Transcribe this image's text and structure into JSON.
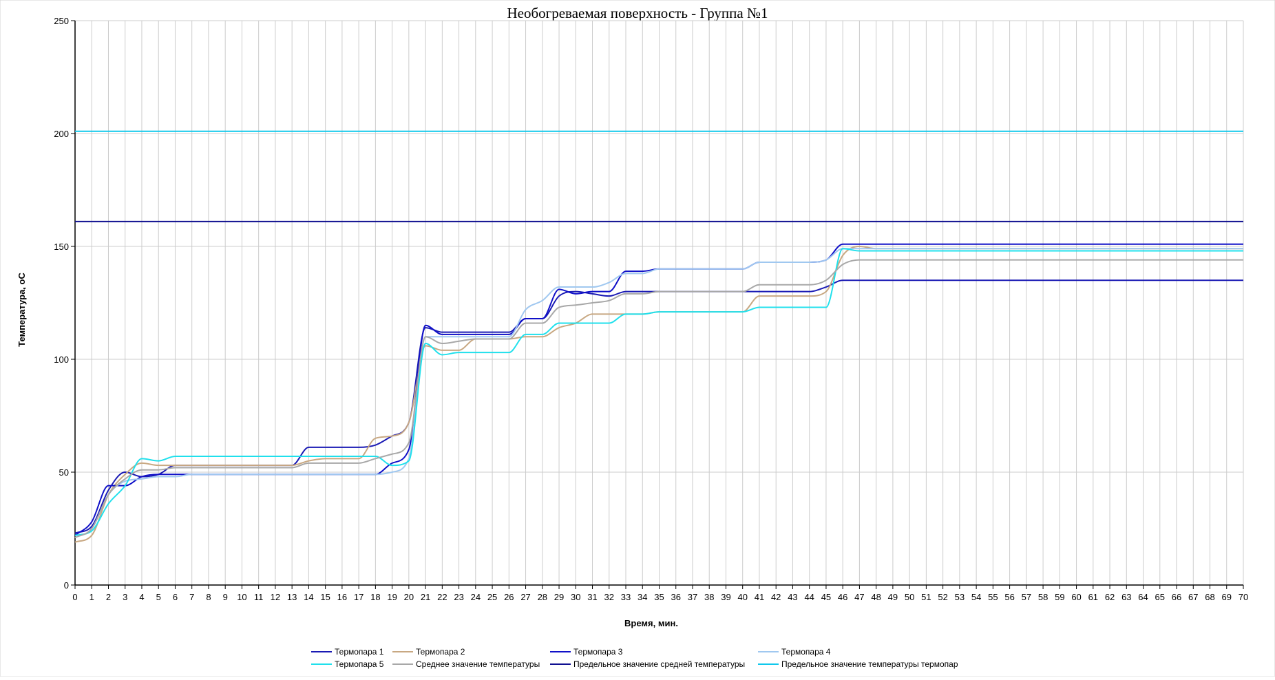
{
  "chart_data": {
    "type": "line",
    "title": "Необогреваемая поверхность - Группа №1",
    "xlabel": "Время, мин.",
    "ylabel": "Температура, оС",
    "xlim": [
      0,
      70
    ],
    "ylim": [
      0,
      250
    ],
    "x_ticks": [
      0,
      1,
      2,
      3,
      4,
      5,
      6,
      7,
      8,
      9,
      10,
      11,
      12,
      13,
      14,
      15,
      16,
      17,
      18,
      19,
      20,
      21,
      22,
      23,
      24,
      25,
      26,
      27,
      28,
      29,
      30,
      31,
      32,
      33,
      34,
      35,
      36,
      37,
      38,
      39,
      40,
      41,
      42,
      43,
      44,
      45,
      46,
      47,
      48,
      49,
      50,
      51,
      52,
      53,
      54,
      55,
      56,
      57,
      58,
      59,
      60,
      61,
      62,
      63,
      64,
      65,
      66,
      67,
      68,
      69,
      70
    ],
    "y_ticks": [
      0,
      50,
      100,
      150,
      200,
      250
    ],
    "grid": true,
    "smooth": true,
    "legend_position": "bottom",
    "series": [
      {
        "name": "Термопара 1",
        "color": "#1a1ab4",
        "x": [
          0,
          1,
          2,
          3,
          4,
          5,
          6,
          7,
          8,
          9,
          10,
          11,
          12,
          13,
          14,
          15,
          16,
          17,
          18,
          19,
          20,
          21,
          22,
          23,
          24,
          25,
          26,
          27,
          28,
          29,
          30,
          31,
          32,
          33,
          34,
          35,
          36,
          37,
          38,
          39,
          40,
          41,
          42,
          43,
          44,
          45,
          46,
          47,
          48,
          49,
          50,
          70
        ],
        "y": [
          23,
          26,
          42,
          50,
          48,
          49,
          53,
          53,
          53,
          53,
          53,
          53,
          53,
          53,
          61,
          61,
          61,
          61,
          62,
          66,
          72,
          114,
          112,
          112,
          112,
          112,
          112,
          118,
          118,
          128,
          130,
          129,
          128,
          130,
          130,
          130,
          130,
          130,
          130,
          130,
          130,
          130,
          130,
          130,
          130,
          132,
          135,
          135,
          135,
          135,
          135,
          135
        ]
      },
      {
        "name": "Термопара 2",
        "color": "#c8a882",
        "x": [
          0,
          1,
          2,
          3,
          4,
          5,
          6,
          7,
          8,
          9,
          10,
          11,
          12,
          13,
          14,
          15,
          16,
          17,
          18,
          19,
          20,
          21,
          22,
          23,
          24,
          25,
          26,
          27,
          28,
          29,
          30,
          31,
          32,
          33,
          34,
          35,
          36,
          37,
          38,
          39,
          40,
          41,
          42,
          43,
          44,
          45,
          46,
          47,
          48,
          49,
          50,
          70
        ],
        "y": [
          19,
          22,
          40,
          49,
          54,
          53,
          53,
          53,
          53,
          53,
          53,
          53,
          53,
          53,
          55,
          56,
          56,
          56,
          65,
          66,
          72,
          106,
          104,
          104,
          109,
          109,
          109,
          110,
          110,
          114,
          116,
          120,
          120,
          120,
          120,
          121,
          121,
          121,
          121,
          121,
          121,
          128,
          128,
          128,
          128,
          130,
          146,
          150,
          149,
          149,
          149,
          149
        ]
      },
      {
        "name": "Термопара 3",
        "color": "#1010c8",
        "x": [
          0,
          1,
          2,
          3,
          4,
          5,
          6,
          7,
          8,
          9,
          10,
          11,
          12,
          13,
          14,
          15,
          16,
          17,
          18,
          19,
          20,
          21,
          22,
          23,
          24,
          25,
          26,
          27,
          28,
          29,
          30,
          31,
          32,
          33,
          34,
          35,
          36,
          37,
          38,
          39,
          40,
          41,
          42,
          43,
          44,
          45,
          46,
          47,
          48,
          49,
          50,
          70
        ],
        "y": [
          22,
          28,
          44,
          44,
          48,
          49,
          49,
          49,
          49,
          49,
          49,
          49,
          49,
          49,
          49,
          49,
          49,
          49,
          49,
          54,
          60,
          115,
          111,
          111,
          111,
          111,
          111,
          118,
          118,
          131,
          129,
          130,
          130,
          139,
          139,
          140,
          140,
          140,
          140,
          140,
          140,
          143,
          143,
          143,
          143,
          144,
          151,
          151,
          151,
          151,
          151,
          151
        ]
      },
      {
        "name": "Термопара 4",
        "color": "#a0c8f0",
        "x": [
          0,
          1,
          2,
          3,
          4,
          5,
          6,
          7,
          8,
          9,
          10,
          11,
          12,
          13,
          14,
          15,
          16,
          17,
          18,
          19,
          20,
          21,
          22,
          23,
          24,
          25,
          26,
          27,
          28,
          29,
          30,
          31,
          32,
          33,
          34,
          35,
          36,
          37,
          38,
          39,
          40,
          41,
          42,
          43,
          44,
          45,
          46,
          47,
          48,
          49,
          50,
          70
        ],
        "y": [
          21,
          25,
          40,
          46,
          47,
          48,
          48,
          49,
          49,
          49,
          49,
          49,
          49,
          49,
          49,
          49,
          49,
          49,
          49,
          50,
          56,
          110,
          110,
          110,
          110,
          110,
          110,
          122,
          126,
          132,
          132,
          132,
          134,
          138,
          138,
          140,
          140,
          140,
          140,
          140,
          140,
          143,
          143,
          143,
          143,
          144,
          149,
          149,
          149,
          149,
          149,
          149
        ]
      },
      {
        "name": "Термопара 5",
        "color": "#20e0ec",
        "x": [
          0,
          1,
          2,
          3,
          4,
          5,
          6,
          7,
          8,
          9,
          10,
          11,
          12,
          13,
          14,
          15,
          16,
          17,
          18,
          19,
          20,
          21,
          22,
          23,
          24,
          25,
          26,
          27,
          28,
          29,
          30,
          31,
          32,
          33,
          34,
          35,
          36,
          37,
          38,
          39,
          40,
          41,
          42,
          43,
          44,
          45,
          46,
          47,
          48,
          49,
          50,
          70
        ],
        "y": [
          22,
          24,
          36,
          44,
          56,
          55,
          57,
          57,
          57,
          57,
          57,
          57,
          57,
          57,
          57,
          57,
          57,
          57,
          57,
          53,
          55,
          107,
          102,
          103,
          103,
          103,
          103,
          111,
          111,
          116,
          116,
          116,
          116,
          120,
          120,
          121,
          121,
          121,
          121,
          121,
          121,
          123,
          123,
          123,
          123,
          123,
          149,
          148,
          148,
          148,
          148,
          148
        ]
      },
      {
        "name": "Среднее значение температуры",
        "color": "#a8a8a8",
        "x": [
          0,
          1,
          2,
          3,
          4,
          5,
          6,
          7,
          8,
          9,
          10,
          11,
          12,
          13,
          14,
          15,
          16,
          17,
          18,
          19,
          20,
          21,
          22,
          23,
          24,
          25,
          26,
          27,
          28,
          29,
          30,
          31,
          32,
          33,
          34,
          35,
          36,
          37,
          38,
          39,
          40,
          41,
          42,
          43,
          44,
          45,
          46,
          47,
          48,
          49,
          50,
          70
        ],
        "y": [
          21,
          25,
          40,
          47,
          51,
          51,
          52,
          52,
          52,
          52,
          52,
          52,
          52,
          52,
          54,
          54,
          54,
          54,
          56,
          58,
          63,
          110,
          107,
          108,
          109,
          109,
          109,
          116,
          116,
          123,
          124,
          125,
          126,
          129,
          129,
          130,
          130,
          130,
          130,
          130,
          130,
          133,
          133,
          133,
          133,
          135,
          142,
          144,
          144,
          144,
          144,
          144
        ]
      },
      {
        "name": "Предельное значение средней температуры",
        "color": "#101090",
        "x": [
          0,
          70
        ],
        "y": [
          161,
          161
        ]
      },
      {
        "name": "Предельное значение температуры термопар",
        "color": "#10c8ec",
        "x": [
          0,
          70
        ],
        "y": [
          201,
          201
        ]
      }
    ]
  }
}
